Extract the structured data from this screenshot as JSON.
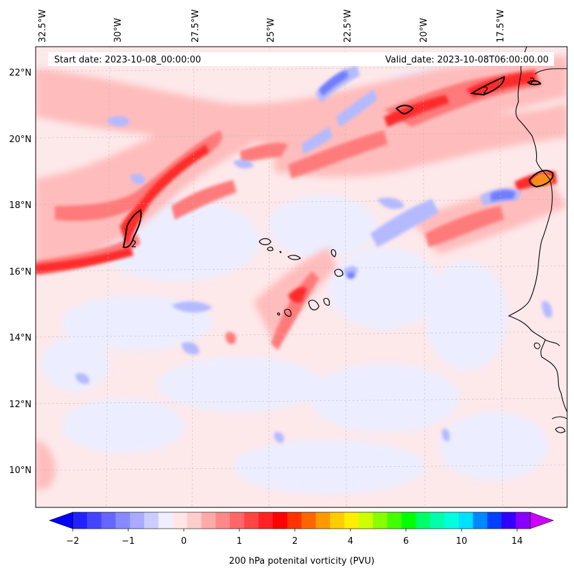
{
  "header": {
    "start_date": "Start date: 2023-10-08_00:00:00",
    "valid_date": "Valid_date: 2023-10-08T06:00:00.00"
  },
  "map": {
    "lon_labels": [
      "32.5°W",
      "30°W",
      "27.5°W",
      "25°W",
      "22.5°W",
      "20°W",
      "17.5°W"
    ],
    "lat_labels": [
      "22°N",
      "20°N",
      "18°N",
      "16°N",
      "14°N",
      "12°N",
      "10°N"
    ],
    "contour_label": "2",
    "colors": {
      "background_pale_blue": "#eef0ff",
      "pale_pink": "#ffe4e4",
      "light_red": "#ffb0b0",
      "mid_red": "#ff7070",
      "strong_red": "#ff2020",
      "light_blue": "#b0b8ff",
      "mid_blue": "#6a78ff",
      "orange": "#ff8a00",
      "coast": "#000000"
    }
  },
  "colorbar": {
    "title": "200 hPa potenital vorticity (PVU)",
    "tick_labels": [
      "−2",
      "−1",
      "0",
      "1",
      "2",
      "4",
      "6",
      "10",
      "14"
    ],
    "colors": [
      "#0000ff",
      "#2222ff",
      "#4444ff",
      "#6666ff",
      "#8888ff",
      "#aaaaff",
      "#ccccff",
      "#eeeeff",
      "#ffe6e6",
      "#ffcccc",
      "#ffaaaa",
      "#ff8888",
      "#ff6666",
      "#ff4444",
      "#ff2222",
      "#ff0000",
      "#ff3300",
      "#ff6600",
      "#ff9900",
      "#ffcc00",
      "#ffee00",
      "#ccff00",
      "#88ff00",
      "#44ff00",
      "#00ff00",
      "#00ff66",
      "#00ffaa",
      "#00ffdd",
      "#00e0ff",
      "#0088ff",
      "#0040ff",
      "#3300ff",
      "#8800ff",
      "#cc00ff"
    ]
  }
}
